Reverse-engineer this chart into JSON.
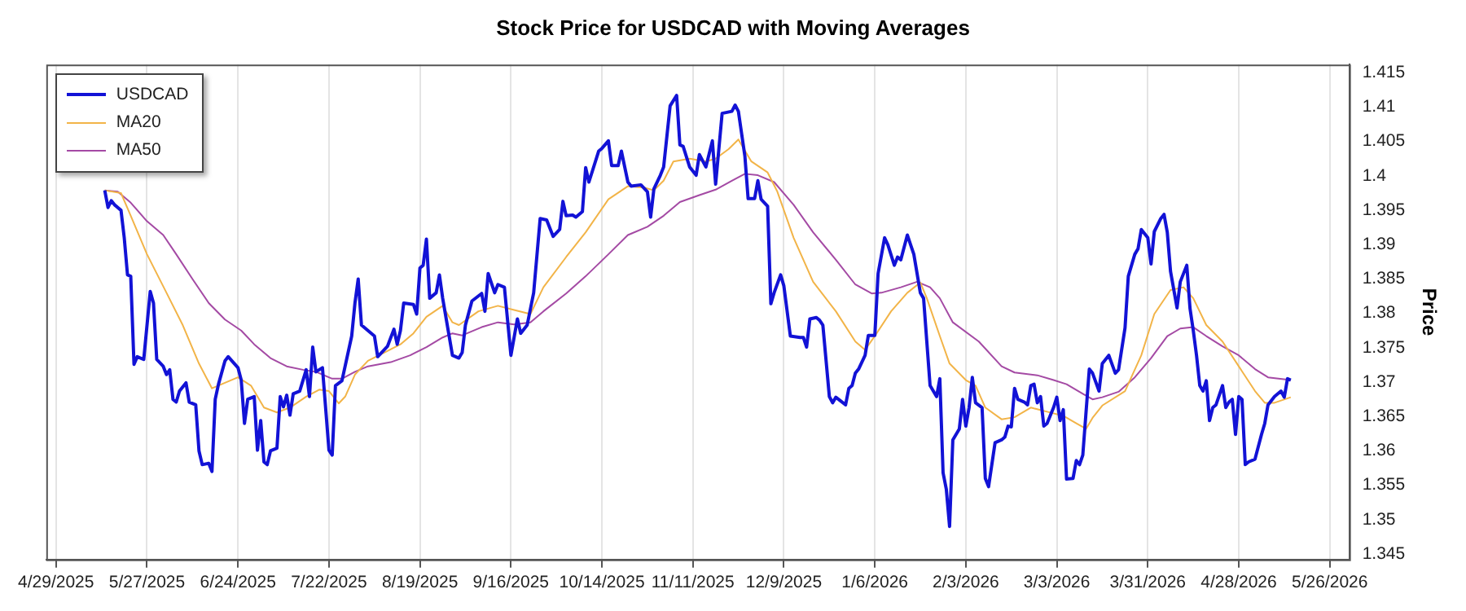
{
  "chart_data": {
    "type": "line",
    "title": "Stock Price for USDCAD with Moving Averages",
    "ylabel": "Price",
    "xlim": [
      "2025-04-26",
      "2026-06-01"
    ],
    "ylim": [
      1.3442,
      1.4162
    ],
    "xticks": [
      {
        "value": "2025-04-29",
        "label": "4/29/2025"
      },
      {
        "value": "2025-05-27",
        "label": "5/27/2025"
      },
      {
        "value": "2025-06-24",
        "label": "6/24/2025"
      },
      {
        "value": "2025-07-22",
        "label": "7/22/2025"
      },
      {
        "value": "2025-08-19",
        "label": "8/19/2025"
      },
      {
        "value": "2025-09-16",
        "label": "9/16/2025"
      },
      {
        "value": "2025-10-14",
        "label": "10/14/2025"
      },
      {
        "value": "2025-11-11",
        "label": "11/11/2025"
      },
      {
        "value": "2025-12-09",
        "label": "12/9/2025"
      },
      {
        "value": "2026-01-06",
        "label": "1/6/2026"
      },
      {
        "value": "2026-02-03",
        "label": "2/3/2026"
      },
      {
        "value": "2026-03-03",
        "label": "3/3/2026"
      },
      {
        "value": "2026-03-31",
        "label": "3/31/2026"
      },
      {
        "value": "2026-04-28",
        "label": "4/28/2026"
      },
      {
        "value": "2026-05-26",
        "label": "5/26/2026"
      }
    ],
    "yticks": [
      1.345,
      1.35,
      1.355,
      1.36,
      1.365,
      1.37,
      1.375,
      1.38,
      1.385,
      1.39,
      1.395,
      1.4,
      1.405,
      1.41,
      1.415
    ],
    "grid": "x",
    "legend": "top left",
    "marker": "none",
    "line_style": "solid",
    "series": [
      {
        "name": "USDCAD",
        "color": "#1212d6",
        "x": [
          "2025-05-14",
          "2025-05-15",
          "2025-05-16",
          "2025-05-17",
          "2025-05-19",
          "2025-05-20",
          "2025-05-21",
          "2025-05-22",
          "2025-05-23",
          "2025-05-24",
          "2025-05-26",
          "2025-05-28",
          "2025-05-29",
          "2025-05-30",
          "2025-06-01",
          "2025-06-02",
          "2025-06-03",
          "2025-06-04",
          "2025-06-05",
          "2025-06-06",
          "2025-06-08",
          "2025-06-09",
          "2025-06-11",
          "2025-06-12",
          "2025-06-13",
          "2025-06-15",
          "2025-06-16",
          "2025-06-17",
          "2025-06-18",
          "2025-06-20",
          "2025-06-21",
          "2025-06-24",
          "2025-06-25",
          "2025-06-26",
          "2025-06-27",
          "2025-06-29",
          "2025-06-30",
          "2025-07-01",
          "2025-07-02",
          "2025-07-03",
          "2025-07-04",
          "2025-07-06",
          "2025-07-07",
          "2025-07-08",
          "2025-07-09",
          "2025-07-10",
          "2025-07-11",
          "2025-07-13",
          "2025-07-15",
          "2025-07-16",
          "2025-07-17",
          "2025-07-18",
          "2025-07-20",
          "2025-07-22",
          "2025-07-23",
          "2025-07-24",
          "2025-07-26",
          "2025-07-29",
          "2025-07-30",
          "2025-07-31",
          "2025-08-01",
          "2025-08-03",
          "2025-08-05",
          "2025-08-06",
          "2025-08-08",
          "2025-08-09",
          "2025-08-11",
          "2025-08-12",
          "2025-08-13",
          "2025-08-14",
          "2025-08-17",
          "2025-08-18",
          "2025-08-19",
          "2025-08-20",
          "2025-08-21",
          "2025-08-22",
          "2025-08-24",
          "2025-08-25",
          "2025-08-26",
          "2025-08-29",
          "2025-08-31",
          "2025-09-01",
          "2025-09-02",
          "2025-09-04",
          "2025-09-07",
          "2025-09-08",
          "2025-09-09",
          "2025-09-11",
          "2025-09-12",
          "2025-09-14",
          "2025-09-16",
          "2025-09-18",
          "2025-09-19",
          "2025-09-21",
          "2025-09-23",
          "2025-09-25",
          "2025-09-27",
          "2025-09-29",
          "2025-10-01",
          "2025-10-02",
          "2025-10-03",
          "2025-10-05",
          "2025-10-06",
          "2025-10-08",
          "2025-10-09",
          "2025-10-10",
          "2025-10-13",
          "2025-10-14",
          "2025-10-16",
          "2025-10-17",
          "2025-10-19",
          "2025-10-20",
          "2025-10-22",
          "2025-10-23",
          "2025-10-26",
          "2025-10-28",
          "2025-10-29",
          "2025-10-30",
          "2025-11-01",
          "2025-11-02",
          "2025-11-04",
          "2025-11-06",
          "2025-11-07",
          "2025-11-08",
          "2025-11-10",
          "2025-11-12",
          "2025-11-13",
          "2025-11-15",
          "2025-11-17",
          "2025-11-18",
          "2025-11-20",
          "2025-11-23",
          "2025-11-24",
          "2025-11-25",
          "2025-11-27",
          "2025-11-28",
          "2025-11-30",
          "2025-12-01",
          "2025-12-02",
          "2025-12-04",
          "2025-12-05",
          "2025-12-06",
          "2025-12-08",
          "2025-12-09",
          "2025-12-11",
          "2025-12-14",
          "2025-12-15",
          "2025-12-16",
          "2025-12-17",
          "2025-12-19",
          "2025-12-20",
          "2025-12-21",
          "2025-12-23",
          "2025-12-24",
          "2025-12-25",
          "2025-12-28",
          "2025-12-29",
          "2025-12-30",
          "2025-12-31",
          "2026-01-01",
          "2026-01-03",
          "2026-01-04",
          "2026-01-06",
          "2026-01-07",
          "2026-01-09",
          "2026-01-10",
          "2026-01-12",
          "2026-01-13",
          "2026-01-14",
          "2026-01-16",
          "2026-01-17",
          "2026-01-18",
          "2026-01-20",
          "2026-01-21",
          "2026-01-23",
          "2026-01-25",
          "2026-01-26",
          "2026-01-27",
          "2026-01-28",
          "2026-01-29",
          "2026-01-30",
          "2026-02-01",
          "2026-02-02",
          "2026-02-03",
          "2026-02-04",
          "2026-02-05",
          "2026-02-06",
          "2026-02-08",
          "2026-02-09",
          "2026-02-10",
          "2026-02-12",
          "2026-02-14",
          "2026-02-15",
          "2026-02-16",
          "2026-02-17",
          "2026-02-18",
          "2026-02-19",
          "2026-02-21",
          "2026-02-22",
          "2026-02-23",
          "2026-02-24",
          "2026-02-25",
          "2026-02-26",
          "2026-02-27",
          "2026-02-28",
          "2026-03-02",
          "2026-03-03",
          "2026-03-04",
          "2026-03-05",
          "2026-03-06",
          "2026-03-08",
          "2026-03-09",
          "2026-03-10",
          "2026-03-11",
          "2026-03-13",
          "2026-03-14",
          "2026-03-16",
          "2026-03-17",
          "2026-03-19",
          "2026-03-21",
          "2026-03-22",
          "2026-03-24",
          "2026-03-25",
          "2026-03-27",
          "2026-03-28",
          "2026-03-29",
          "2026-03-31",
          "2026-04-01",
          "2026-04-02",
          "2026-04-04",
          "2026-04-05",
          "2026-04-06",
          "2026-04-07",
          "2026-04-09",
          "2026-04-10",
          "2026-04-12",
          "2026-04-13",
          "2026-04-14",
          "2026-04-15",
          "2026-04-16",
          "2026-04-17",
          "2026-04-18",
          "2026-04-19",
          "2026-04-20",
          "2026-04-21",
          "2026-04-23",
          "2026-04-24",
          "2026-04-25",
          "2026-04-26",
          "2026-04-27",
          "2026-04-28",
          "2026-04-29",
          "2026-04-30",
          "2026-05-01",
          "2026-05-03",
          "2026-05-05",
          "2026-05-06",
          "2026-05-07",
          "2026-05-09",
          "2026-05-11",
          "2026-05-12",
          "2026-05-13",
          "2026-05-14"
        ],
        "values": [
          1.3979,
          1.3954,
          1.3964,
          1.3958,
          1.395,
          1.391,
          1.3856,
          1.3854,
          1.3726,
          1.3737,
          1.3733,
          1.3832,
          1.3815,
          1.3733,
          1.3723,
          1.3711,
          1.3718,
          1.3675,
          1.3671,
          1.3687,
          1.3699,
          1.3671,
          1.3667,
          1.36,
          1.358,
          1.3582,
          1.357,
          1.3675,
          1.3697,
          1.3731,
          1.3737,
          1.3721,
          1.3703,
          1.364,
          1.3675,
          1.3679,
          1.3601,
          1.3644,
          1.3584,
          1.358,
          1.36,
          1.3604,
          1.3679,
          1.3664,
          1.3681,
          1.3652,
          1.3683,
          1.3687,
          1.3718,
          1.3679,
          1.3751,
          1.3715,
          1.3721,
          1.3601,
          1.3594,
          1.3695,
          1.3702,
          1.3767,
          1.3815,
          1.385,
          1.3783,
          1.3775,
          1.3767,
          1.3737,
          1.3747,
          1.3752,
          1.3777,
          1.3755,
          1.3775,
          1.3815,
          1.3813,
          1.3799,
          1.3866,
          1.387,
          1.3908,
          1.3822,
          1.383,
          1.3856,
          1.3822,
          1.3739,
          1.3735,
          1.3743,
          1.3783,
          1.3818,
          1.3829,
          1.3803,
          1.3858,
          1.383,
          1.3842,
          1.3838,
          1.3739,
          1.3792,
          1.3771,
          1.3783,
          1.383,
          1.3938,
          1.3936,
          1.3912,
          1.3922,
          1.3963,
          1.3942,
          1.3943,
          1.394,
          1.3948,
          1.4012,
          1.3991,
          1.4036,
          1.404,
          1.4051,
          1.4015,
          1.4015,
          1.4036,
          1.3991,
          1.3985,
          1.3987,
          1.3977,
          1.394,
          1.3981,
          1.4001,
          1.4013,
          1.4102,
          1.4117,
          1.4045,
          1.4043,
          1.4013,
          1.4001,
          1.4031,
          1.4013,
          1.4051,
          1.3988,
          1.4091,
          1.4094,
          1.4103,
          1.4094,
          1.4029,
          1.3967,
          1.3967,
          1.3993,
          1.3966,
          1.3956,
          1.3814,
          1.383,
          1.3856,
          1.384,
          1.3767,
          1.3765,
          1.3765,
          1.3751,
          1.3792,
          1.3794,
          1.379,
          1.3783,
          1.3679,
          1.367,
          1.3678,
          1.3667,
          1.3691,
          1.3695,
          1.3713,
          1.3719,
          1.3739,
          1.3768,
          1.3768,
          1.3858,
          1.391,
          1.39,
          1.387,
          1.3882,
          1.3878,
          1.3914,
          1.39,
          1.3886,
          1.383,
          1.3822,
          1.3695,
          1.3679,
          1.3705,
          1.3568,
          1.3544,
          1.349,
          1.3616,
          1.3632,
          1.3675,
          1.3636,
          1.3663,
          1.3707,
          1.367,
          1.3663,
          1.356,
          1.3548,
          1.3612,
          1.3616,
          1.362,
          1.3636,
          1.3635,
          1.3691,
          1.3675,
          1.3671,
          1.3667,
          1.3695,
          1.3697,
          1.367,
          1.3679,
          1.3636,
          1.364,
          1.3663,
          1.3678,
          1.3644,
          1.366,
          1.3559,
          1.356,
          1.3586,
          1.358,
          1.3594,
          1.3719,
          1.3713,
          1.3687,
          1.3727,
          1.3739,
          1.3713,
          1.3718,
          1.3779,
          1.3854,
          1.3886,
          1.3894,
          1.3922,
          1.391,
          1.3872,
          1.3919,
          1.3938,
          1.3944,
          1.3918,
          1.3861,
          1.3808,
          1.3846,
          1.387,
          1.3807,
          1.3775,
          1.3739,
          1.3695,
          1.3687,
          1.3702,
          1.3644,
          1.3663,
          1.3667,
          1.3695,
          1.3663,
          1.3671,
          1.3675,
          1.3624,
          1.3679,
          1.3675,
          1.358,
          1.3584,
          1.3588,
          1.3624,
          1.364,
          1.3667,
          1.3679,
          1.3687,
          1.3678,
          1.3705,
          1.3703
        ]
      },
      {
        "name": "MA20",
        "color": "#f2b448",
        "x": [
          "2025-05-14",
          "2025-05-19",
          "2025-05-22",
          "2025-05-27",
          "2025-06-02",
          "2025-06-07",
          "2025-06-12",
          "2025-06-16",
          "2025-06-20",
          "2025-06-24",
          "2025-06-28",
          "2025-07-02",
          "2025-07-06",
          "2025-07-10",
          "2025-07-15",
          "2025-07-19",
          "2025-07-22",
          "2025-07-25",
          "2025-07-27",
          "2025-07-30",
          "2025-08-03",
          "2025-08-08",
          "2025-08-13",
          "2025-08-17",
          "2025-08-21",
          "2025-08-26",
          "2025-08-29",
          "2025-08-31",
          "2025-09-06",
          "2025-09-12",
          "2025-09-17",
          "2025-09-22",
          "2025-09-26",
          "2025-10-03",
          "2025-10-09",
          "2025-10-16",
          "2025-10-22",
          "2025-10-27",
          "2025-10-30",
          "2025-11-02",
          "2025-11-05",
          "2025-11-10",
          "2025-11-15",
          "2025-11-18",
          "2025-11-22",
          "2025-11-25",
          "2025-11-29",
          "2025-12-04",
          "2025-12-07",
          "2025-12-12",
          "2025-12-18",
          "2025-12-25",
          "2025-12-31",
          "2026-01-03",
          "2026-01-06",
          "2026-01-11",
          "2026-01-16",
          "2026-01-20",
          "2026-01-22",
          "2026-01-26",
          "2026-01-29",
          "2026-02-03",
          "2026-02-06",
          "2026-02-09",
          "2026-02-14",
          "2026-02-18",
          "2026-02-23",
          "2026-02-28",
          "2026-03-05",
          "2026-03-09",
          "2026-03-12",
          "2026-03-14",
          "2026-03-17",
          "2026-03-24",
          "2026-03-29",
          "2026-04-02",
          "2026-04-07",
          "2026-04-11",
          "2026-04-14",
          "2026-04-18",
          "2026-04-23",
          "2026-04-28",
          "2026-05-03",
          "2026-05-06",
          "2026-05-09",
          "2026-05-14"
        ],
        "values": [
          1.3979,
          1.3975,
          1.3942,
          1.3886,
          1.383,
          1.3783,
          1.3727,
          1.3691,
          1.3699,
          1.3707,
          1.3695,
          1.3663,
          1.3656,
          1.3663,
          1.3679,
          1.3689,
          1.3687,
          1.3669,
          1.3679,
          1.3711,
          1.3731,
          1.3743,
          1.3755,
          1.3771,
          1.3795,
          1.3811,
          1.3787,
          1.3783,
          1.3803,
          1.3811,
          1.3805,
          1.3799,
          1.3838,
          1.3882,
          1.3918,
          1.3966,
          1.3985,
          1.3983,
          1.3979,
          1.3993,
          1.4021,
          1.4025,
          1.4021,
          1.4025,
          1.4039,
          1.4053,
          1.4021,
          1.4005,
          1.3977,
          1.391,
          1.3846,
          1.3803,
          1.3759,
          1.3747,
          1.3767,
          1.3803,
          1.383,
          1.3845,
          1.3822,
          1.3767,
          1.3727,
          1.3703,
          1.3695,
          1.3663,
          1.3646,
          1.3649,
          1.3663,
          1.3657,
          1.3651,
          1.364,
          1.3632,
          1.3648,
          1.3666,
          1.3687,
          1.3739,
          1.3799,
          1.3834,
          1.3838,
          1.3822,
          1.3783,
          1.3759,
          1.3723,
          1.3687,
          1.367,
          1.367,
          1.3678
        ]
      },
      {
        "name": "MA50",
        "color": "#a44aa4",
        "x": [
          "2025-05-14",
          "2025-05-18",
          "2025-05-22",
          "2025-05-27",
          "2025-06-01",
          "2025-06-05",
          "2025-06-10",
          "2025-06-15",
          "2025-06-20",
          "2025-06-25",
          "2025-06-29",
          "2025-07-04",
          "2025-07-09",
          "2025-07-14",
          "2025-07-18",
          "2025-07-23",
          "2025-07-26",
          "2025-07-30",
          "2025-08-03",
          "2025-08-10",
          "2025-08-16",
          "2025-08-21",
          "2025-08-26",
          "2025-08-29",
          "2025-09-01",
          "2025-09-07",
          "2025-09-12",
          "2025-09-17",
          "2025-09-22",
          "2025-09-26",
          "2025-10-03",
          "2025-10-09",
          "2025-10-16",
          "2025-10-22",
          "2025-10-28",
          "2025-11-02",
          "2025-11-07",
          "2025-11-13",
          "2025-11-18",
          "2025-11-23",
          "2025-11-27",
          "2025-12-01",
          "2025-12-06",
          "2025-12-12",
          "2025-12-18",
          "2025-12-25",
          "2025-12-31",
          "2026-01-05",
          "2026-01-08",
          "2026-01-14",
          "2026-01-19",
          "2026-01-23",
          "2026-01-26",
          "2026-01-30",
          "2026-02-07",
          "2026-02-14",
          "2026-02-18",
          "2026-02-25",
          "2026-03-02",
          "2026-03-06",
          "2026-03-11",
          "2026-03-14",
          "2026-03-17",
          "2026-03-22",
          "2026-03-27",
          "2026-04-01",
          "2026-04-06",
          "2026-04-10",
          "2026-04-14",
          "2026-04-18",
          "2026-04-23",
          "2026-04-28",
          "2026-05-03",
          "2026-05-07",
          "2026-05-14"
        ],
        "values": [
          1.3979,
          1.3977,
          1.3961,
          1.3934,
          1.3914,
          1.3886,
          1.385,
          1.3815,
          1.3791,
          1.3775,
          1.3755,
          1.3735,
          1.3723,
          1.3718,
          1.3715,
          1.3705,
          1.3705,
          1.3715,
          1.3723,
          1.3729,
          1.3739,
          1.3751,
          1.3765,
          1.3771,
          1.3768,
          1.378,
          1.3787,
          1.3784,
          1.3787,
          1.3803,
          1.3829,
          1.3854,
          1.3886,
          1.3914,
          1.3926,
          1.3942,
          1.3962,
          1.3972,
          1.398,
          1.3993,
          1.4003,
          1.4001,
          1.3991,
          1.3958,
          1.3918,
          1.3878,
          1.3842,
          1.3829,
          1.383,
          1.3838,
          1.3846,
          1.3838,
          1.3822,
          1.3787,
          1.3759,
          1.3723,
          1.3714,
          1.371,
          1.3703,
          1.3697,
          1.3683,
          1.3675,
          1.3678,
          1.3686,
          1.3707,
          1.3735,
          1.3767,
          1.3778,
          1.378,
          1.3767,
          1.3752,
          1.3739,
          1.3719,
          1.3707,
          1.3703
        ]
      }
    ]
  }
}
